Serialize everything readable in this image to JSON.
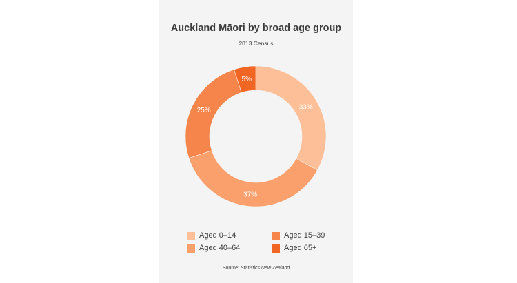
{
  "chart_data": {
    "type": "pie",
    "donut": true,
    "title": "Auckland Māori by broad age group",
    "subtitle": "2013 Census",
    "slices": [
      {
        "name": "Aged 0–14",
        "value": 33,
        "label": "33%",
        "color": "#fdbf97"
      },
      {
        "name": "Aged 40–64",
        "value": 37,
        "label": "37%",
        "color": "#f9a06d"
      },
      {
        "name": "Aged 15–39",
        "value": 25,
        "label": "25%",
        "color": "#f5854a"
      },
      {
        "name": "Aged 65+",
        "value": 5,
        "label": "5%",
        "color": "#f26624"
      }
    ],
    "legend": {
      "placement": "bottom",
      "items": [
        {
          "label": "Aged 0–14",
          "color": "#fdbf97"
        },
        {
          "label": "Aged 15–39",
          "color": "#f5854a"
        },
        {
          "label": "Aged 40–64",
          "color": "#f9a06d"
        },
        {
          "label": "Aged 65+",
          "color": "#f26624"
        }
      ]
    },
    "source_prefix": "Source:",
    "source": "Statistics New Zealand"
  }
}
